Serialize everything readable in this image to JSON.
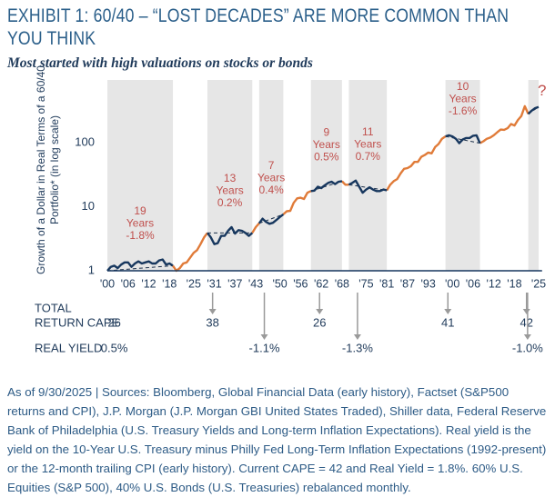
{
  "chart_data": {
    "type": "line",
    "title": "EXHIBIT 1: 60/40 – “LOST DECADES” ARE MORE COMMON THAN YOU THINK",
    "subtitle": "Most started with high valuations on stocks or bonds",
    "y_label": "Growth of a Dollar in Real Terms of a 60/40 Portfolio* (in log scale)",
    "log_scale": true,
    "xlim": [
      1900,
      2026
    ],
    "ylim": [
      1,
      950
    ],
    "yticks": [
      1,
      10,
      100
    ],
    "xticks": [
      {
        "value": 1900,
        "label": "'00"
      },
      {
        "value": 1906,
        "label": "'06"
      },
      {
        "value": 1912,
        "label": "'12"
      },
      {
        "value": 1918,
        "label": "'18"
      },
      {
        "value": 1925,
        "label": "'25"
      },
      {
        "value": 1931,
        "label": "'31"
      },
      {
        "value": 1937,
        "label": "'37"
      },
      {
        "value": 1943,
        "label": "'43"
      },
      {
        "value": 1950,
        "label": "'50"
      },
      {
        "value": 1956,
        "label": "'56"
      },
      {
        "value": 1962,
        "label": "'62"
      },
      {
        "value": 1968,
        "label": "'68"
      },
      {
        "value": 1975,
        "label": "'75"
      },
      {
        "value": 1981,
        "label": "'81"
      },
      {
        "value": 1987,
        "label": "'87"
      },
      {
        "value": 1993,
        "label": "'93"
      },
      {
        "value": 2000,
        "label": "'00"
      },
      {
        "value": 2006,
        "label": "'06"
      },
      {
        "value": 2012,
        "label": "'12"
      },
      {
        "value": 2018,
        "label": "'18"
      },
      {
        "value": 2025,
        "label": "'25"
      }
    ],
    "x": [
      1900,
      1901,
      1902,
      1903,
      1904,
      1905,
      1906,
      1907,
      1908,
      1909,
      1910,
      1911,
      1912,
      1913,
      1914,
      1915,
      1916,
      1917,
      1918,
      1919,
      1920,
      1921,
      1922,
      1923,
      1924,
      1925,
      1926,
      1927,
      1928,
      1929,
      1930,
      1931,
      1932,
      1933,
      1934,
      1935,
      1936,
      1937,
      1938,
      1939,
      1940,
      1941,
      1942,
      1943,
      1944,
      1945,
      1946,
      1947,
      1948,
      1949,
      1950,
      1951,
      1952,
      1953,
      1954,
      1955,
      1956,
      1957,
      1958,
      1959,
      1960,
      1961,
      1962,
      1963,
      1964,
      1965,
      1966,
      1967,
      1968,
      1969,
      1970,
      1971,
      1972,
      1973,
      1974,
      1975,
      1976,
      1977,
      1978,
      1979,
      1980,
      1981,
      1982,
      1983,
      1984,
      1985,
      1986,
      1987,
      1988,
      1989,
      1990,
      1991,
      1992,
      1993,
      1994,
      1995,
      1996,
      1997,
      1998,
      1999,
      2000,
      2001,
      2002,
      2003,
      2004,
      2005,
      2006,
      2007,
      2008,
      2009,
      2010,
      2011,
      2012,
      2013,
      2014,
      2015,
      2016,
      2017,
      2018,
      2019,
      2020,
      2021,
      2022,
      2023,
      2024,
      2025
    ],
    "series": [
      {
        "color": "#e07b39",
        "values": [
          null,
          null,
          null,
          null,
          null,
          null,
          null,
          null,
          null,
          null,
          null,
          null,
          null,
          null,
          null,
          null,
          null,
          null,
          null,
          1.2,
          1.0,
          1.1,
          1.3,
          1.35,
          1.6,
          1.9,
          2.1,
          2.6,
          3.3,
          3.9,
          null,
          null,
          null,
          null,
          null,
          null,
          null,
          null,
          null,
          null,
          null,
          null,
          3.9,
          4.8,
          5.5,
          null,
          null,
          null,
          null,
          null,
          null,
          7.6,
          8.5,
          8.6,
          11.5,
          13.5,
          13.8,
          13.2,
          16.5,
          17.5,
          null,
          null,
          null,
          null,
          null,
          null,
          null,
          null,
          25,
          22,
          22,
          null,
          null,
          null,
          null,
          null,
          null,
          null,
          null,
          null,
          null,
          18,
          22,
          25,
          27,
          33,
          39,
          40,
          43,
          50,
          50,
          60,
          64,
          70,
          68,
          85,
          95,
          115,
          125,
          null,
          null,
          null,
          null,
          null,
          null,
          null,
          null,
          null,
          98,
          105,
          115,
          120,
          130,
          145,
          160,
          158,
          168,
          195,
          185,
          225,
          260,
          370,
          280,
          null,
          null,
          null
        ]
      },
      {
        "color": "#17375e",
        "values": [
          1.0,
          1.15,
          1.2,
          1.1,
          1.25,
          1.35,
          1.35,
          1.15,
          1.3,
          1.4,
          1.3,
          1.35,
          1.4,
          1.3,
          1.3,
          1.45,
          1.5,
          1.25,
          1.3,
          1.2,
          null,
          null,
          null,
          null,
          null,
          null,
          null,
          null,
          null,
          3.9,
          3.3,
          2.6,
          2.7,
          3.5,
          3.5,
          4.2,
          4.8,
          3.8,
          4.3,
          4.2,
          3.9,
          3.5,
          3.9,
          null,
          5.5,
          6.5,
          5.8,
          5.4,
          5.6,
          6.2,
          6.9,
          7.6,
          null,
          null,
          null,
          null,
          null,
          null,
          null,
          17.5,
          17.8,
          20.5,
          19.5,
          21.5,
          23.5,
          24.5,
          22.5,
          24.5,
          25,
          null,
          22,
          23.5,
          25.5,
          20.5,
          16.5,
          18.5,
          20,
          18.5,
          17.5,
          17.5,
          18.5,
          18,
          null,
          null,
          null,
          null,
          null,
          null,
          null,
          null,
          null,
          null,
          null,
          null,
          null,
          null,
          null,
          null,
          125,
          130,
          125,
          115,
          98,
          112,
          118,
          118,
          128,
          130,
          98,
          null,
          null,
          null,
          null,
          null,
          null,
          null,
          null,
          null,
          null,
          null,
          null,
          null,
          280,
          315,
          345,
          360
        ]
      }
    ],
    "shade_color": "#e6e6e6",
    "label_color": "#c0504d",
    "periods": [
      {
        "start": 1900,
        "end": 1919,
        "label": [
          "19",
          "Years",
          "-1.8%"
        ]
      },
      {
        "start": 1929,
        "end": 1942,
        "label": [
          "13",
          "Years",
          "0.2%"
        ]
      },
      {
        "start": 1944,
        "end": 1951,
        "label": [
          "7",
          "Years",
          "0.4%"
        ]
      },
      {
        "start": 1959,
        "end": 1968,
        "label": [
          "9",
          "Years",
          "0.5%"
        ]
      },
      {
        "start": 1970,
        "end": 1981,
        "label": [
          "11",
          "Years",
          "0.7%"
        ]
      },
      {
        "start": 1998,
        "end": 2008,
        "label": [
          "10",
          "Years",
          "-1.6%"
        ]
      },
      {
        "start": 2022,
        "end": 2025,
        "label": [
          "?"
        ]
      }
    ],
    "valuation_table": [
      {
        "label": [
          "TOTAL",
          "RETURN CAPE"
        ],
        "entries": [
          {
            "x": 1902,
            "text": "26"
          },
          {
            "x": 1930.5,
            "text": "38"
          },
          {
            "x": 1961.5,
            "text": "26"
          },
          {
            "x": 1998.7,
            "text": "41"
          },
          {
            "x": 2021.5,
            "text": "42"
          }
        ]
      },
      {
        "label": [
          "REAL YIELD"
        ],
        "entries": [
          {
            "x": 1902,
            "text": "0.5%"
          },
          {
            "x": 1945.5,
            "text": "-1.1%"
          },
          {
            "x": 1972.5,
            "text": "-1.3%"
          },
          {
            "x": 2021.8,
            "text": "-1.0%"
          }
        ]
      }
    ]
  },
  "footnote": "As of 9/30/2025 | Sources: Bloomberg, Global Financial Data (early history), Factset (S&P500 returns and CPI), J.P. Morgan (J.P. Morgan GBI United States Traded), Shiller data, Federal Reserve Bank of Philadelphia (U.S. Treasury Yields and Long-term Inflation Expectations). Real yield is the yield on the 10-Year U.S. Treasury minus Philly Fed Long-Term Inflation Expectations (1992-present) or the 12-month trailing CPI (early history). Current CAPE = 42 and Real Yield = 1.8%. 60% U.S. Equities (S&P 500), 40% U.S. Bonds (U.S. Treasuries) rebalanced monthly."
}
